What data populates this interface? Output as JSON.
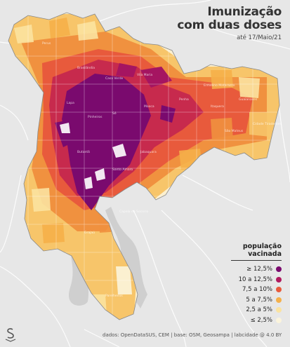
{
  "title": {
    "line1": "Imunização",
    "line2": "com duas doses",
    "date": "até 17/Maio/21"
  },
  "legend": {
    "title_line1": "população",
    "title_line2": "vacinada",
    "items": [
      {
        "label": "≥ 12,5%",
        "color": "#7a0a6e"
      },
      {
        "label": "10 a 12,5%",
        "color": "#b0195e"
      },
      {
        "label": "7,5 a 10%",
        "color": "#e85a3c"
      },
      {
        "label": "5 a 7,5%",
        "color": "#f5b04a"
      },
      {
        "label": "2,5 a 5%",
        "color": "#fbe3a0"
      },
      {
        "label": "≤ 2,5%",
        "color": "#fbf4dc"
      }
    ]
  },
  "footer": "dados: OpenDataSUS, CEM | base: OSM, Geosampa | labcidade @ 4.0 BY",
  "logo_icon": "s-logo-icon",
  "neighborhoods": [
    "Perus",
    "Brasilândia",
    "Casa Verde",
    "Sé",
    "Mooca",
    "Penha",
    "Itaquera",
    "Guaianases",
    "São Mateus",
    "Capela do Socorro",
    "Parelheiros",
    "Grajaú",
    "Jabaquara",
    "Santo Amaro",
    "Butantã",
    "Pinheiros",
    "Lapa",
    "Vila Maria",
    "Ermelino Matarazzo",
    "Cidade Tiradentes"
  ]
}
